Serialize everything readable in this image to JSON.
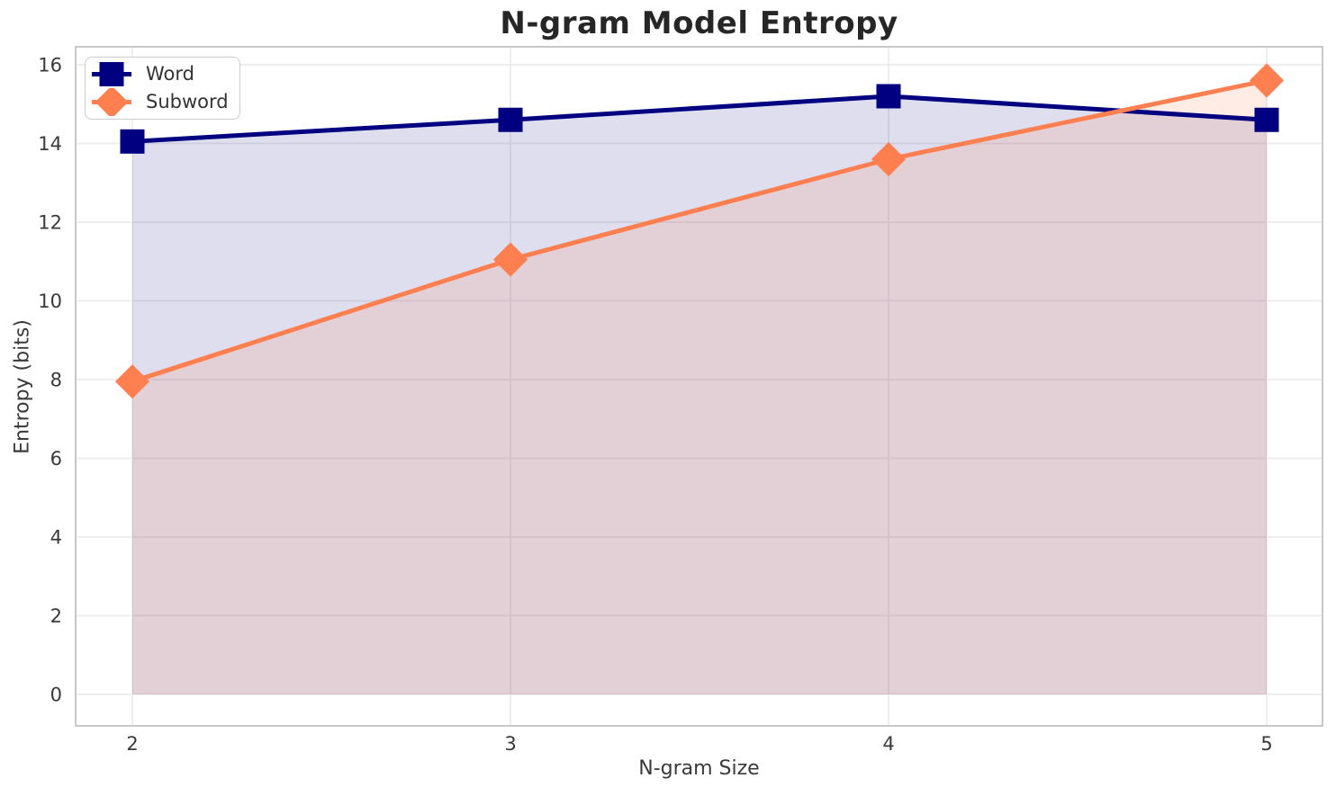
{
  "chart_data": {
    "type": "line",
    "title": "N-gram Model Entropy",
    "xlabel": "N-gram Size",
    "ylabel": "Entropy (bits)",
    "x": [
      2,
      3,
      4,
      5
    ],
    "xticks": [
      2,
      3,
      4,
      5
    ],
    "yticks": [
      0,
      2,
      4,
      6,
      8,
      10,
      12,
      14,
      16
    ],
    "ylim": [
      0,
      16
    ],
    "grid": true,
    "legend_position": "upper left",
    "area_fill": true,
    "series": [
      {
        "name": "Word",
        "color": "#000080",
        "marker": "square",
        "line_width": 5,
        "fill_opacity": 0.13,
        "values": [
          14.05,
          14.6,
          15.2,
          14.6
        ]
      },
      {
        "name": "Subword",
        "color": "#FF7F50",
        "marker": "diamond",
        "line_width": 5,
        "fill_opacity": 0.15,
        "values": [
          7.95,
          11.05,
          13.6,
          15.6
        ]
      }
    ]
  }
}
